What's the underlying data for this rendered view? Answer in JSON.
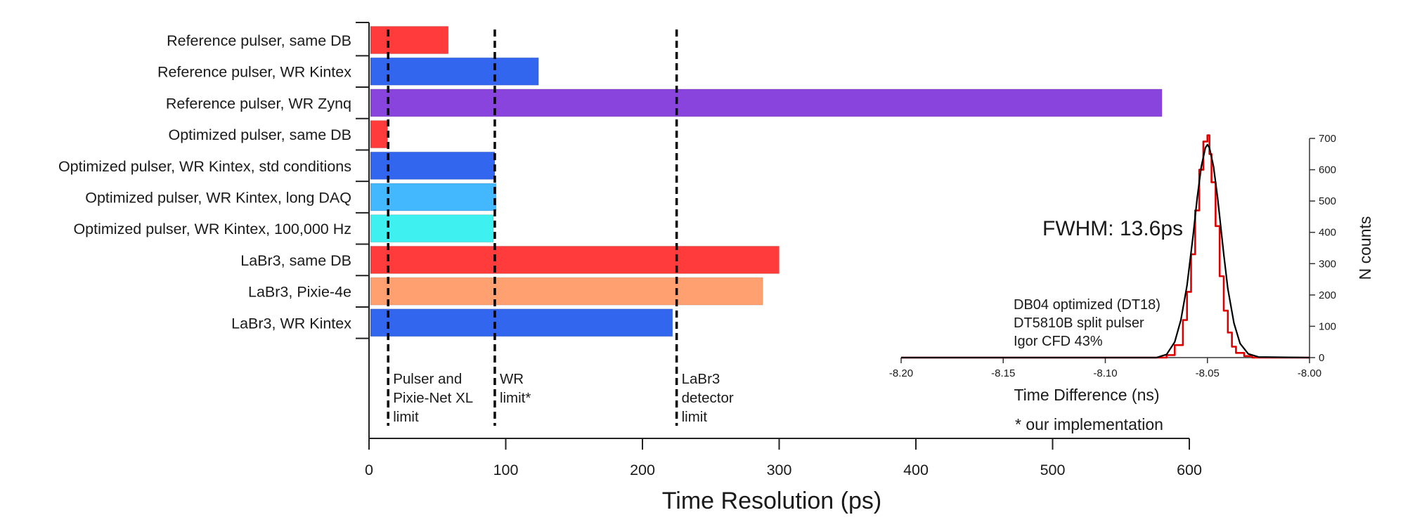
{
  "chart_data": [
    {
      "type": "bar",
      "orientation": "horizontal",
      "categories": [
        "Reference pulser, same DB",
        "Reference pulser, WR Kintex",
        "Reference pulser, WR Zynq",
        "Optimized pulser, same DB",
        "Optimized pulser, WR Kintex, std conditions",
        "Optimized pulser, WR Kintex, long DAQ",
        "Optimized pulser, WR Kintex, 100,000 Hz",
        "LaBr3, same DB",
        "LaBr3, Pixie-4e",
        "LaBr3, WR Kintex"
      ],
      "values": [
        58,
        124,
        580,
        13.6,
        92,
        93,
        91,
        300,
        288,
        222
      ],
      "colors": [
        "#ff3b3b",
        "#3366ee",
        "#8844dd",
        "#ff3b3b",
        "#3366ee",
        "#44b8ff",
        "#3ef0f0",
        "#ff3b3b",
        "#ffa070",
        "#3366ee"
      ],
      "xlabel": "Time Resolution (ps)",
      "xlim": [
        0,
        600
      ],
      "xticks": [
        "0",
        "100",
        "200",
        "300",
        "400",
        "500",
        "600"
      ],
      "reference_lines": [
        {
          "value": 14,
          "label": [
            "Pulser and",
            "Pixie-Net XL",
            "limit"
          ]
        },
        {
          "value": 92,
          "label": [
            "WR",
            "limit*"
          ]
        },
        {
          "value": 225,
          "label": [
            "LaBr3",
            "detector",
            "limit"
          ]
        }
      ],
      "grid": false
    },
    {
      "type": "line",
      "xlabel": "Time Difference (ns)",
      "ylabel": "N counts",
      "xlim": [
        -8.2,
        -8.0
      ],
      "ylim": [
        0,
        700
      ],
      "xticks": [
        "-8.20",
        "-8.15",
        "-8.10",
        "-8.05",
        "-8.00"
      ],
      "yticks": [
        "0",
        "100",
        "200",
        "300",
        "400",
        "500",
        "600",
        "700"
      ],
      "series": [
        {
          "color": "#dd0000",
          "x": [
            -8.2,
            -8.075,
            -8.07,
            -8.066,
            -8.062,
            -8.06,
            -8.058,
            -8.056,
            -8.054,
            -8.052,
            -8.05,
            -8.049,
            -8.048,
            -8.046,
            -8.044,
            -8.042,
            -8.04,
            -8.038,
            -8.036,
            -8.032,
            -8.028,
            -8.0
          ],
          "y": [
            0,
            0,
            8,
            40,
            120,
            210,
            330,
            470,
            600,
            690,
            710,
            650,
            560,
            420,
            260,
            150,
            80,
            35,
            15,
            5,
            0,
            0
          ]
        },
        {
          "color": "#000000",
          "x": [
            -8.2,
            -8.075,
            -8.07,
            -8.066,
            -8.063,
            -8.06,
            -8.057,
            -8.055,
            -8.053,
            -8.051,
            -8.05,
            -8.049,
            -8.047,
            -8.045,
            -8.042,
            -8.04,
            -8.037,
            -8.034,
            -8.03,
            -8.025,
            -8.0
          ],
          "y": [
            0,
            0,
            10,
            50,
            120,
            230,
            390,
            510,
            610,
            670,
            680,
            670,
            610,
            510,
            330,
            220,
            110,
            45,
            12,
            2,
            0
          ]
        }
      ],
      "annotations": {
        "fwhm": "FWHM: 13.6ps",
        "legend": [
          "DB04 optimized (DT18)",
          "DT5810B split pulser",
          "Igor CFD 43%"
        ]
      }
    }
  ],
  "footnote": "* our implementation"
}
